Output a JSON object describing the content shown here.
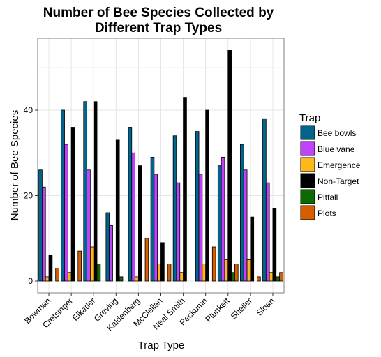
{
  "chart_data": {
    "type": "bar",
    "title_line1": "Number of Bee Species Collected by",
    "title_line2": "Different Trap Types",
    "xlabel": "Trap Type",
    "ylabel": "Number of Bee Species",
    "ylim": [
      0,
      57
    ],
    "yticks": [
      0,
      20,
      40
    ],
    "grid": true,
    "legend_title": "Trap",
    "legend_position": "right",
    "categories": [
      "Bowman",
      "Cretsinger",
      "Elkader",
      "Greving",
      "Kaldenberg",
      "McClellan",
      "Neal Smith",
      "Peckumn",
      "Plunkett",
      "Sheller",
      "Sloan"
    ],
    "series": [
      {
        "name": "Bee bowls",
        "color": "#00648c",
        "values": [
          26,
          40,
          42,
          16,
          36,
          29,
          34,
          35,
          27,
          32,
          38
        ]
      },
      {
        "name": "Blue vane",
        "color": "#c142fa",
        "values": [
          22,
          32,
          26,
          13,
          30,
          25,
          23,
          25,
          29,
          26,
          23
        ]
      },
      {
        "name": "Emergence",
        "color": "#ffb81c",
        "values": [
          1,
          2,
          8,
          0,
          1,
          4,
          2,
          4,
          5,
          5,
          2
        ]
      },
      {
        "name": "Non-Target",
        "color": "#000000",
        "values": [
          6,
          36,
          42,
          33,
          27,
          9,
          43,
          40,
          54,
          15,
          17
        ]
      },
      {
        "name": "Pitfall",
        "color": "#0b6a00",
        "values": [
          0,
          0,
          4,
          1,
          0,
          0,
          0,
          0,
          2,
          0,
          1
        ]
      },
      {
        "name": "Plots",
        "color": "#d45e00",
        "values": [
          3,
          7,
          0,
          0,
          10,
          4,
          0,
          8,
          4,
          1,
          2
        ]
      }
    ]
  }
}
